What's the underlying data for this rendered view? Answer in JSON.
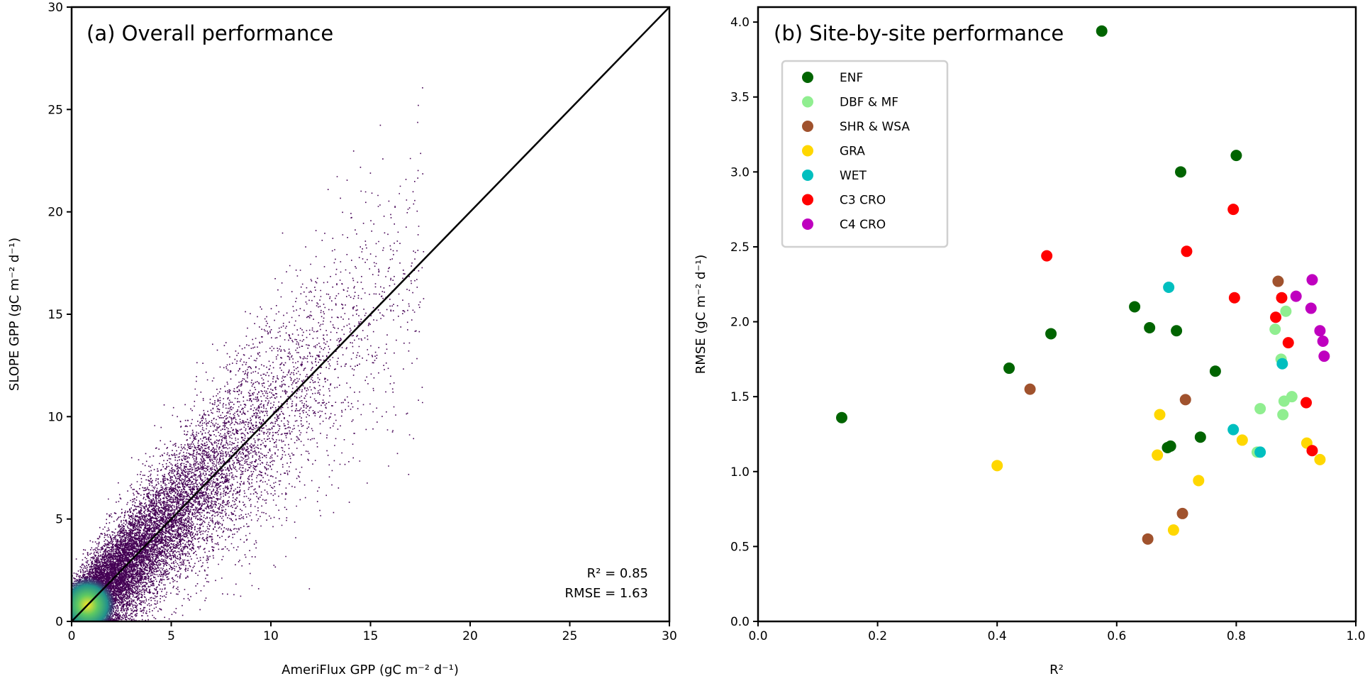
{
  "chart_data": [
    {
      "type": "scatter",
      "title": "(a) Overall performance",
      "xlabel": "AmeriFlux GPP (gC m⁻² d⁻¹)",
      "ylabel": "SLOPE GPP (gC m⁻² d⁻¹)",
      "xlim": [
        0,
        30
      ],
      "ylim": [
        0,
        30
      ],
      "xticks": [
        0,
        5,
        10,
        15,
        20,
        25,
        30
      ],
      "yticks": [
        0,
        5,
        10,
        15,
        20,
        25,
        30
      ],
      "style": "density-colored scatter (viridis), dense near origin",
      "reference_line": "1:1",
      "grid": false,
      "annotations": [
        "R² = 0.85",
        "RMSE = 1.63"
      ],
      "point_color": "#440154"
    },
    {
      "type": "scatter",
      "title": "(b) Site-by-site performance",
      "xlabel": "R²",
      "ylabel": "RMSE (gC m⁻² d⁻¹)",
      "xlim": [
        0,
        1
      ],
      "ylim": [
        0,
        4.1
      ],
      "xticks": [
        "0.0",
        "0.2",
        "0.4",
        "0.6",
        "0.8",
        "1.0"
      ],
      "yticks": [
        "0.0",
        "0.5",
        "1.0",
        "1.5",
        "2.0",
        "2.5",
        "3.0",
        "3.5",
        "4.0"
      ],
      "grid": false,
      "legend_position": "upper-left",
      "series": [
        {
          "name": "ENF",
          "color": "#006400",
          "points": [
            [
              0.14,
              1.36
            ],
            [
              0.42,
              1.69
            ],
            [
              0.49,
              1.92
            ],
            [
              0.575,
              3.94
            ],
            [
              0.63,
              2.1
            ],
            [
              0.655,
              1.96
            ],
            [
              0.685,
              1.16
            ],
            [
              0.69,
              1.17
            ],
            [
              0.7,
              1.94
            ],
            [
              0.707,
              3.0
            ],
            [
              0.74,
              1.23
            ],
            [
              0.765,
              1.67
            ],
            [
              0.8,
              3.11
            ]
          ]
        },
        {
          "name": "DBF & MF",
          "color": "#90EE90",
          "points": [
            [
              0.835,
              1.13
            ],
            [
              0.84,
              1.42
            ],
            [
              0.865,
              1.95
            ],
            [
              0.875,
              1.75
            ],
            [
              0.878,
              1.38
            ],
            [
              0.88,
              1.47
            ],
            [
              0.883,
              2.07
            ],
            [
              0.893,
              1.5
            ]
          ]
        },
        {
          "name": "SHR & WSA",
          "color": "#A0522D",
          "points": [
            [
              0.455,
              1.55
            ],
            [
              0.652,
              0.55
            ],
            [
              0.71,
              0.72
            ],
            [
              0.715,
              1.48
            ],
            [
              0.87,
              2.27
            ]
          ]
        },
        {
          "name": "GRA",
          "color": "#FFD700",
          "points": [
            [
              0.4,
              1.04
            ],
            [
              0.668,
              1.11
            ],
            [
              0.672,
              1.38
            ],
            [
              0.695,
              0.61
            ],
            [
              0.737,
              0.94
            ],
            [
              0.81,
              1.21
            ],
            [
              0.918,
              1.19
            ],
            [
              0.94,
              1.08
            ]
          ]
        },
        {
          "name": "WET",
          "color": "#00BFBF",
          "points": [
            [
              0.687,
              2.23
            ],
            [
              0.795,
              1.28
            ],
            [
              0.84,
              1.13
            ],
            [
              0.877,
              1.72
            ]
          ]
        },
        {
          "name": "C3 CRO",
          "color": "#FF0000",
          "points": [
            [
              0.483,
              2.44
            ],
            [
              0.717,
              2.47
            ],
            [
              0.795,
              2.75
            ],
            [
              0.797,
              2.16
            ],
            [
              0.866,
              2.03
            ],
            [
              0.876,
              2.16
            ],
            [
              0.887,
              1.86
            ],
            [
              0.917,
              1.46
            ],
            [
              0.927,
              1.14
            ]
          ]
        },
        {
          "name": "C4 CRO",
          "color": "#BF00BF",
          "points": [
            [
              0.9,
              2.17
            ],
            [
              0.927,
              2.28
            ],
            [
              0.925,
              2.09
            ],
            [
              0.94,
              1.94
            ],
            [
              0.945,
              1.87
            ],
            [
              0.947,
              1.77
            ]
          ]
        }
      ]
    }
  ]
}
